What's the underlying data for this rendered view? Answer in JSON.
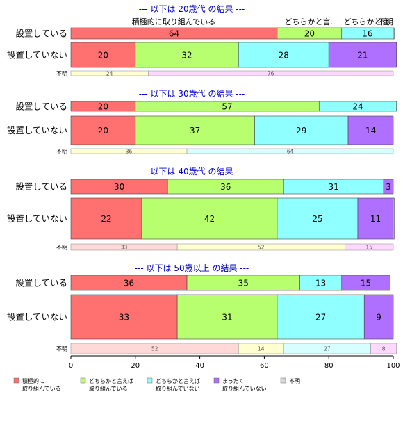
{
  "chart_data": {
    "type": "bar",
    "orientation": "horizontal",
    "stacked": true,
    "xlim": [
      0,
      100
    ],
    "x_ticks": [
      "0",
      "20",
      "40",
      "60",
      "80",
      "100"
    ],
    "grid": false,
    "legend_position": "bottom",
    "column_headers": [
      "積極的に取り組んでいる",
      "どちらかと言..",
      "どちらかと言..",
      "不明"
    ],
    "legend": [
      {
        "label": [
          "積極的に",
          "取り組んでいる"
        ],
        "color": "#ff7070"
      },
      {
        "label": [
          "どちらかと言えば",
          "取り組んでいる"
        ],
        "color": "#b8ff70"
      },
      {
        "label": [
          "どちらかと言えば",
          "取り組んでいない"
        ],
        "color": "#90ffff"
      },
      {
        "label": [
          "まったく",
          "取り組んでいない"
        ],
        "color": "#b070ff"
      },
      {
        "label": [
          "不明"
        ],
        "color": "#d8d8d8"
      }
    ],
    "main_colors": [
      "#ff7070",
      "#b8ff70",
      "#90ffff",
      "#b070ff",
      "#d8d8d8"
    ],
    "light_colors": [
      "#ffd8d8",
      "#ffffd0",
      "#d8ffff",
      "#ffd8ff"
    ],
    "groups": [
      {
        "title": "--- 以下は 20歳代 の結果 ---",
        "rows": [
          {
            "label": "設置している",
            "kind": "main",
            "values": [
              64,
              20,
              16,
              0,
              0.3
            ],
            "labels": [
              "64",
              "20",
              "16",
              "",
              ""
            ]
          },
          {
            "label": "設置していない",
            "kind": "main",
            "values": [
              20,
              32,
              28,
              21,
              0
            ],
            "labels": [
              "20",
              "32",
              "28",
              "21",
              ""
            ]
          },
          {
            "label": "不明",
            "kind": "small",
            "values": [
              24,
              76
            ],
            "labels": [
              "24",
              "76"
            ],
            "colors": [
              "#ffffd0",
              "#ffd8ff"
            ]
          }
        ]
      },
      {
        "title": "--- 以下は 30歳代 の結果 ---",
        "rows": [
          {
            "label": "設置している",
            "kind": "main",
            "values": [
              20,
              57,
              24,
              0,
              0
            ],
            "labels": [
              "20",
              "57",
              "24",
              "",
              ""
            ]
          },
          {
            "label": "設置していない",
            "kind": "main",
            "values": [
              20,
              37,
              29,
              14,
              0
            ],
            "labels": [
              "20",
              "37",
              "29",
              "14",
              ""
            ]
          },
          {
            "label": "不明",
            "kind": "small",
            "values": [
              36,
              64
            ],
            "labels": [
              "36",
              "64"
            ],
            "colors": [
              "#ffffd0",
              "#d8ffff"
            ]
          }
        ]
      },
      {
        "title": "--- 以下は 40歳代 の結果 ---",
        "rows": [
          {
            "label": "設置している",
            "kind": "main",
            "values": [
              30,
              36,
              31,
              3,
              0
            ],
            "labels": [
              "30",
              "36",
              "31",
              "3",
              ""
            ]
          },
          {
            "label": "設置していない",
            "kind": "main",
            "values": [
              22,
              42,
              25,
              11,
              0.3
            ],
            "labels": [
              "22",
              "42",
              "25",
              "11",
              ""
            ]
          },
          {
            "label": "不明",
            "kind": "small",
            "values": [
              33,
              52,
              15
            ],
            "labels": [
              "33",
              "52",
              "15"
            ],
            "colors": [
              "#ffd8d8",
              "#ffffd0",
              "#ffd8ff"
            ]
          }
        ]
      },
      {
        "title": "--- 以下は 50歳以上 の結果 ---",
        "rows": [
          {
            "label": "設置している",
            "kind": "main",
            "values": [
              36,
              35,
              13,
              15,
              0
            ],
            "labels": [
              "36",
              "35",
              "13",
              "15",
              ""
            ]
          },
          {
            "label": "設置していない",
            "kind": "main",
            "values": [
              33,
              31,
              27,
              9,
              0
            ],
            "labels": [
              "33",
              "31",
              "27",
              "9",
              ""
            ]
          },
          {
            "label": "不明",
            "kind": "small",
            "values": [
              52,
              14,
              27,
              8
            ],
            "labels": [
              "52",
              "14",
              "27",
              "8"
            ],
            "colors": [
              "#ffd8d8",
              "#ffffd0",
              "#d8ffff",
              "#ffd8ff"
            ]
          }
        ]
      }
    ]
  }
}
